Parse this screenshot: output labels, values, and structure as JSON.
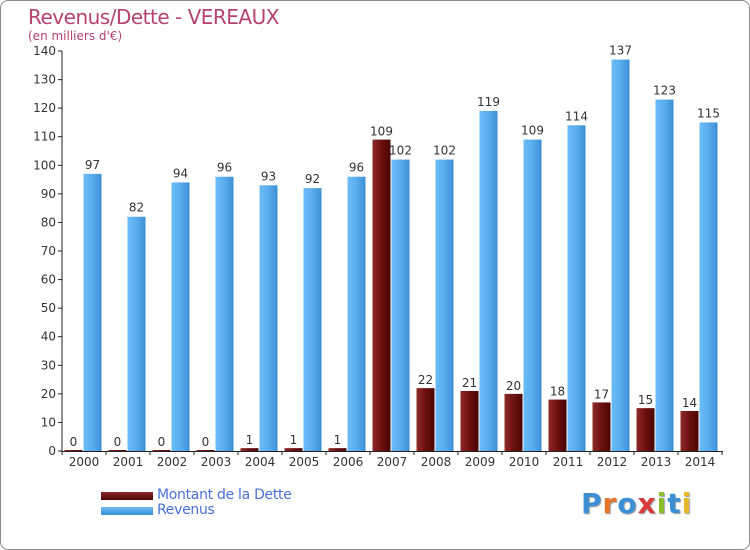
{
  "title": "Revenus/Dette - VEREAUX",
  "subtitle": "(en milliers d'€)",
  "logo": "Proxiti",
  "colors": {
    "debt": "#6e1010",
    "revenue": "#5aacec",
    "title": "#b5426f",
    "legend_text": "#4a6fd8"
  },
  "chart_data": {
    "type": "bar",
    "categories": [
      "2000",
      "2001",
      "2002",
      "2003",
      "2004",
      "2005",
      "2006",
      "2007",
      "2008",
      "2009",
      "2010",
      "2011",
      "2012",
      "2013",
      "2014"
    ],
    "series": [
      {
        "name": "Montant de la Dette",
        "values": [
          0,
          0,
          0,
          0,
          1,
          1,
          1,
          109,
          22,
          21,
          20,
          18,
          17,
          15,
          14
        ]
      },
      {
        "name": "Revenus",
        "values": [
          97,
          82,
          94,
          96,
          93,
          92,
          96,
          102,
          102,
          119,
          109,
          114,
          137,
          123,
          115
        ]
      }
    ],
    "ylim": [
      0,
      140
    ],
    "yticks": [
      0,
      10,
      20,
      30,
      40,
      50,
      60,
      70,
      80,
      90,
      100,
      110,
      120,
      130,
      140
    ],
    "grid": false,
    "legend": "bottom-left"
  }
}
